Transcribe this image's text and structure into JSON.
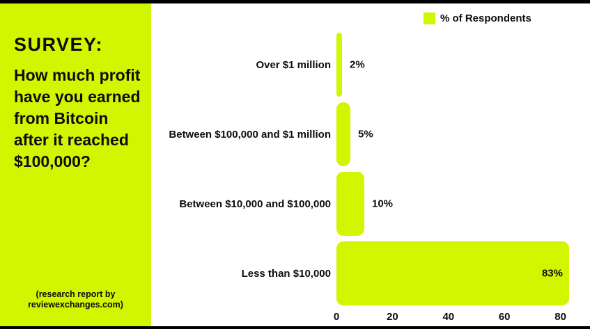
{
  "left_panel": {
    "heading": "SURVEY:",
    "question": "How much profit have you earned from Bitcoin after it reached $100,000?",
    "footnote": "(research report by reviewexchanges.com)"
  },
  "colors": {
    "accent": "#D2F500",
    "ink": "#0d0d0d",
    "paper": "#ffffff",
    "frame": "#000000"
  },
  "chart_data": {
    "type": "bar",
    "orientation": "horizontal",
    "title": "",
    "legend": "% of Respondents",
    "legend_position": "top-right",
    "grid": false,
    "categories": [
      "Over $1 million",
      "Between $100,000 and $1 million",
      "Between $10,000 and $100,000",
      "Less than $10,000"
    ],
    "values": [
      2,
      5,
      10,
      83
    ],
    "value_labels": [
      "2%",
      "5%",
      "10%",
      "83%"
    ],
    "xlabel": "",
    "ylabel": "",
    "xlim": [
      0,
      85
    ],
    "xticks": [
      0,
      20,
      40,
      60,
      80
    ]
  }
}
